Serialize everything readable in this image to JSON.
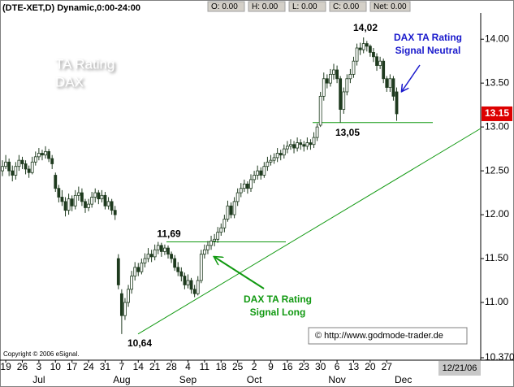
{
  "chart_data": {
    "type": "candlestick",
    "title": "(DTE-XET,D) Dynamic,0:00-24:00",
    "fields": [
      "O: 0.00",
      "H: 0.00",
      "L: 0.00",
      "C: 0.00",
      "Net: 0.00"
    ],
    "watermark": [
      "TA Rating",
      "DAX"
    ],
    "categories": [
      null,
      "19",
      null,
      null,
      null,
      null,
      "26",
      null,
      null,
      null,
      null,
      "3",
      null,
      null,
      null,
      null,
      "10",
      null,
      null,
      null,
      null,
      "17",
      null,
      null,
      null,
      null,
      "24",
      null,
      null,
      null,
      null,
      "31",
      null,
      null,
      null,
      null,
      "7",
      null,
      null,
      null,
      null,
      "14",
      null,
      null,
      null,
      null,
      "21",
      null,
      null,
      null,
      null,
      "28",
      null,
      null,
      null,
      null,
      "4",
      null,
      null,
      null,
      null,
      "11",
      null,
      null,
      null,
      null,
      "18",
      null,
      null,
      null,
      null,
      "25",
      null,
      null,
      null,
      null,
      "2",
      null,
      null,
      null,
      null,
      "9",
      null,
      null,
      null,
      null,
      "16",
      null,
      null,
      null,
      null,
      "23",
      null,
      null,
      null,
      null,
      "30",
      null,
      null,
      null,
      null,
      "6",
      null,
      null,
      null,
      null,
      "13",
      null,
      null,
      null,
      null,
      "20",
      null,
      null,
      null,
      null,
      "27",
      null,
      null,
      null,
      null,
      null
    ],
    "months": [
      null,
      null,
      null,
      null,
      null,
      null,
      null,
      null,
      null,
      null,
      null,
      "Jul",
      null,
      null,
      null,
      null,
      null,
      null,
      null,
      null,
      null,
      null,
      null,
      null,
      null,
      null,
      null,
      null,
      null,
      null,
      null,
      null,
      null,
      null,
      null,
      null,
      "Aug",
      null,
      null,
      null,
      null,
      null,
      null,
      null,
      null,
      null,
      null,
      null,
      null,
      null,
      null,
      null,
      null,
      null,
      null,
      null,
      "Sep",
      null,
      null,
      null,
      null,
      null,
      null,
      null,
      null,
      null,
      null,
      null,
      null,
      null,
      null,
      null,
      null,
      null,
      null,
      null,
      "Oct",
      null,
      null,
      null,
      null,
      null,
      null,
      null,
      null,
      null,
      null,
      null,
      null,
      null,
      null,
      null,
      null,
      null,
      null,
      null,
      null,
      null,
      null,
      null,
      null,
      "Nov",
      null,
      null,
      null,
      null,
      null,
      null,
      null,
      null,
      null,
      null,
      null,
      null,
      null,
      null,
      null,
      null,
      null,
      null,
      null,
      "Dec"
    ],
    "open": [
      12.5,
      12.55,
      12.6,
      12.5,
      12.45,
      12.55,
      12.62,
      12.58,
      12.52,
      12.48,
      12.6,
      12.66,
      12.7,
      12.68,
      12.72,
      12.64,
      12.45,
      12.3,
      12.2,
      12.15,
      12.05,
      12.18,
      12.1,
      12.22,
      12.25,
      12.15,
      12.08,
      12.12,
      12.2,
      12.25,
      12.18,
      12.22,
      12.1,
      12.15,
      12.05,
      11.5,
      11.1,
      10.85,
      11.0,
      11.15,
      11.3,
      11.4,
      11.35,
      11.45,
      11.5,
      11.55,
      11.52,
      11.6,
      11.65,
      11.58,
      11.62,
      11.55,
      11.5,
      11.4,
      11.35,
      11.3,
      11.2,
      11.25,
      11.15,
      11.1,
      11.25,
      11.55,
      11.6,
      11.65,
      11.7,
      11.72,
      11.8,
      11.85,
      11.95,
      12.1,
      12.0,
      12.15,
      12.25,
      12.3,
      12.35,
      12.3,
      12.4,
      12.45,
      12.5,
      12.45,
      12.55,
      12.6,
      12.62,
      12.65,
      12.7,
      12.68,
      12.75,
      12.78,
      12.8,
      12.76,
      12.82,
      12.8,
      12.78,
      12.82,
      12.8,
      12.88,
      13.02,
      13.35,
      13.55,
      13.5,
      13.6,
      13.65,
      13.55,
      13.2,
      13.4,
      13.55,
      13.6,
      13.75,
      13.9,
      13.88,
      13.95,
      13.92,
      13.85,
      13.8,
      13.7,
      13.75,
      13.55,
      13.45,
      13.55,
      13.4,
      null,
      null
    ],
    "high": [
      12.62,
      12.68,
      12.64,
      12.56,
      12.6,
      12.68,
      12.66,
      12.62,
      12.56,
      12.66,
      12.72,
      12.76,
      12.74,
      12.78,
      12.75,
      12.68,
      12.48,
      12.34,
      12.28,
      12.2,
      12.24,
      12.22,
      12.28,
      12.32,
      12.3,
      12.18,
      12.18,
      12.26,
      12.3,
      12.28,
      12.28,
      12.26,
      12.2,
      12.18,
      12.1,
      11.55,
      11.15,
      11.05,
      11.2,
      11.36,
      11.46,
      11.45,
      11.5,
      11.56,
      11.62,
      11.6,
      11.66,
      11.69,
      11.68,
      11.66,
      11.65,
      11.58,
      11.54,
      11.46,
      11.4,
      11.34,
      11.32,
      11.28,
      11.2,
      11.3,
      11.6,
      11.66,
      11.7,
      11.76,
      11.78,
      11.86,
      11.9,
      12.0,
      12.16,
      12.14,
      12.2,
      12.3,
      12.36,
      12.4,
      12.38,
      12.46,
      12.5,
      12.56,
      12.54,
      12.6,
      12.66,
      12.68,
      12.7,
      12.76,
      12.74,
      12.8,
      12.84,
      12.86,
      12.84,
      12.88,
      12.86,
      12.84,
      12.88,
      12.86,
      12.94,
      13.04,
      13.4,
      13.62,
      13.6,
      13.66,
      13.72,
      13.7,
      13.58,
      13.45,
      13.6,
      13.66,
      13.8,
      13.95,
      13.96,
      14.02,
      13.98,
      13.94,
      13.9,
      13.84,
      13.8,
      13.78,
      13.58,
      13.6,
      13.58,
      13.45,
      null,
      null
    ],
    "low": [
      12.44,
      12.52,
      12.44,
      12.38,
      12.4,
      12.5,
      12.52,
      12.46,
      12.42,
      12.46,
      12.56,
      12.62,
      12.62,
      12.64,
      12.6,
      12.52,
      12.26,
      12.14,
      12.1,
      11.98,
      12.0,
      12.04,
      12.06,
      12.16,
      12.1,
      12.02,
      12.04,
      12.08,
      12.14,
      12.12,
      12.14,
      12.06,
      12.06,
      12.0,
      11.94,
      11.15,
      10.64,
      10.8,
      10.95,
      11.1,
      11.25,
      11.3,
      11.32,
      11.4,
      11.46,
      11.46,
      11.48,
      11.55,
      11.52,
      11.54,
      11.5,
      11.45,
      11.36,
      11.3,
      11.24,
      11.15,
      11.16,
      11.1,
      11.06,
      11.08,
      11.22,
      11.5,
      11.55,
      11.6,
      11.64,
      11.68,
      11.76,
      11.8,
      11.92,
      11.96,
      11.96,
      12.1,
      12.2,
      12.26,
      12.24,
      12.26,
      12.36,
      12.4,
      12.4,
      12.42,
      12.5,
      12.56,
      12.58,
      12.6,
      12.62,
      12.64,
      12.7,
      12.74,
      12.7,
      12.72,
      12.74,
      12.72,
      12.74,
      12.74,
      12.76,
      12.84,
      13.0,
      13.3,
      13.44,
      13.46,
      13.54,
      13.5,
      13.05,
      13.15,
      13.36,
      13.5,
      13.56,
      13.7,
      13.82,
      13.84,
      13.86,
      13.8,
      13.74,
      13.64,
      13.66,
      13.5,
      13.4,
      13.4,
      13.3,
      13.07,
      null,
      null
    ],
    "close": [
      12.55,
      12.6,
      12.5,
      12.45,
      12.55,
      12.62,
      12.58,
      12.52,
      12.48,
      12.6,
      12.66,
      12.7,
      12.68,
      12.72,
      12.64,
      12.58,
      12.3,
      12.2,
      12.15,
      12.05,
      12.18,
      12.1,
      12.22,
      12.25,
      12.15,
      12.08,
      12.12,
      12.2,
      12.25,
      12.18,
      12.22,
      12.1,
      12.15,
      12.05,
      12.0,
      11.2,
      10.85,
      11.0,
      11.15,
      11.3,
      11.4,
      11.35,
      11.45,
      11.5,
      11.55,
      11.52,
      11.6,
      11.65,
      11.58,
      11.62,
      11.55,
      11.5,
      11.4,
      11.35,
      11.3,
      11.2,
      11.25,
      11.15,
      11.1,
      11.25,
      11.55,
      11.6,
      11.65,
      11.7,
      11.72,
      11.8,
      11.85,
      11.95,
      12.1,
      12.0,
      12.15,
      12.25,
      12.3,
      12.35,
      12.3,
      12.4,
      12.45,
      12.5,
      12.45,
      12.55,
      12.6,
      12.62,
      12.65,
      12.7,
      12.68,
      12.75,
      12.78,
      12.8,
      12.76,
      12.82,
      12.8,
      12.78,
      12.82,
      12.8,
      12.88,
      13.0,
      13.35,
      13.55,
      13.5,
      13.6,
      13.65,
      13.55,
      13.2,
      13.4,
      13.55,
      13.6,
      13.75,
      13.9,
      13.88,
      13.95,
      13.92,
      13.85,
      13.8,
      13.7,
      13.75,
      13.55,
      13.45,
      13.55,
      13.35,
      13.15,
      null,
      null
    ],
    "up_color": "#ffffff",
    "down_color": "#1e3a1e",
    "wick_color": "#1e3a1e",
    "level_color": "#119911",
    "ylim": [
      10.37,
      14.28
    ],
    "yticks": [
      {
        "value": 10.37,
        "label": "10.370"
      },
      {
        "value": 11,
        "label": "11.00"
      },
      {
        "value": 11.5,
        "label": "11.50"
      },
      {
        "value": 12,
        "label": "12.00"
      },
      {
        "value": 12.5,
        "label": "12.50"
      },
      {
        "value": 13,
        "label": "13.00"
      },
      {
        "value": 13.5,
        "label": "13.50"
      },
      {
        "value": 14,
        "label": "14.00"
      }
    ],
    "last_price": {
      "value": 13.15,
      "label": "13.15"
    },
    "levels": [
      {
        "value": 13.05,
        "label": "13,05"
      },
      {
        "value": 11.69,
        "label": "11,69"
      }
    ],
    "extremes": [
      {
        "value": 14.02,
        "label": "14,02"
      },
      {
        "value": 10.64,
        "label": "10,64"
      }
    ],
    "signal_neutral": [
      "DAX TA Rating",
      "Signal Neutral"
    ],
    "signal_long": [
      "DAX TA Rating",
      "Signal Long"
    ],
    "source": "© http://www.godmode-trader.de",
    "copyright": "Copyright © 2006 eSignal.",
    "date": "12/21/06"
  }
}
